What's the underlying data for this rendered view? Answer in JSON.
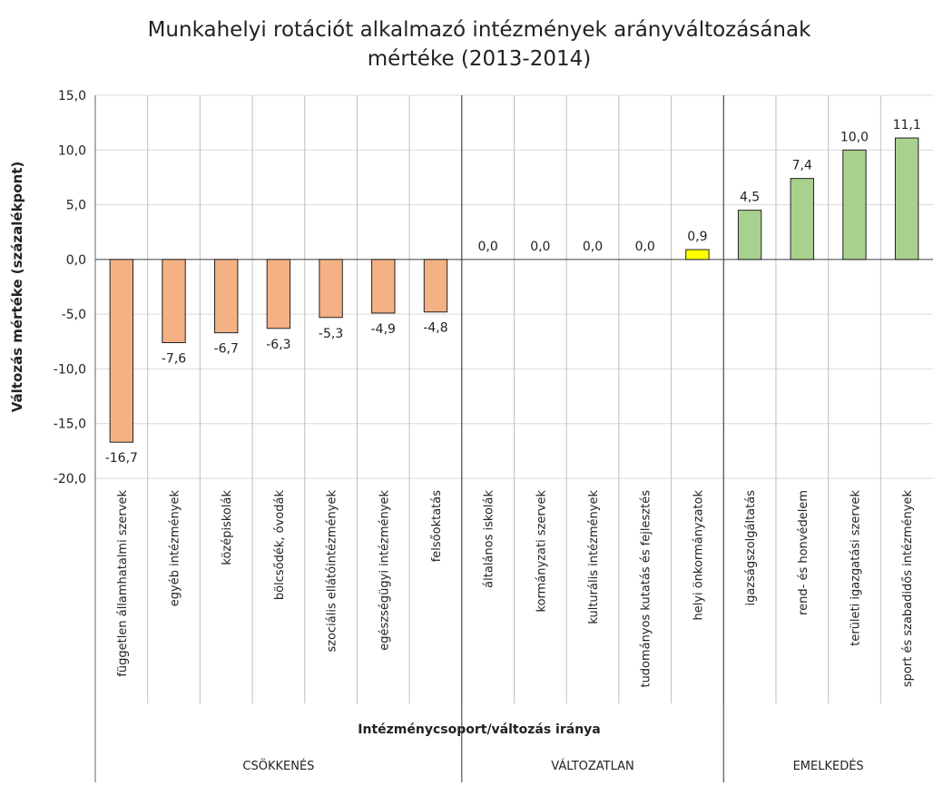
{
  "chart_data": {
    "type": "bar",
    "title": [
      "Munkahelyi rotációt alkalmazó intézmények arányváltozásának",
      "mértéke (2013-2014)"
    ],
    "y_label": "Változás mértéke (százalékpont)",
    "x_label": "Intézménycsoport/változás iránya",
    "ylim": [
      -20,
      15
    ],
    "yticks": [
      {
        "value": -20,
        "label": "-20,0"
      },
      {
        "value": -15,
        "label": "-15,0"
      },
      {
        "value": -10,
        "label": "-10,0"
      },
      {
        "value": -5,
        "label": "-5,0"
      },
      {
        "value": 0,
        "label": "0,0"
      },
      {
        "value": 5,
        "label": "5,0"
      },
      {
        "value": 10,
        "label": "10,0"
      },
      {
        "value": 15,
        "label": "15,0"
      }
    ],
    "grid": true,
    "groups": [
      {
        "name": "CSÖKKENÉS",
        "color": "#f4b183",
        "categories": [
          "független államhatalmi szervek",
          "egyéb intézmények",
          "középiskolák",
          "bölcsődék, óvodák",
          "szociális ellátóintézmények",
          "egészségügyi intézmények",
          "felsőoktatás"
        ],
        "values": [
          -16.7,
          -7.6,
          -6.7,
          -6.3,
          -5.3,
          -4.9,
          -4.8
        ],
        "value_labels": [
          "-16,7",
          "-7,6",
          "-6,7",
          "-6,3",
          "-5,3",
          "-4,9",
          "-4,8"
        ]
      },
      {
        "name": "VÁLTOZATLAN",
        "color": "#ffff00",
        "categories": [
          "általános iskolák",
          "kormányzati szervek",
          "kulturális intézmények",
          "tudományos kutatás és fejlesztés",
          "helyi önkormányzatok"
        ],
        "values": [
          0,
          0,
          0,
          0,
          0.9
        ],
        "value_labels": [
          "0,0",
          "0,0",
          "0,0",
          "0,0",
          "0,9"
        ]
      },
      {
        "name": "EMELKEDÉS",
        "color": "#a9d18e",
        "categories": [
          "igazságszolgáltatás",
          "rend- és honvédelem",
          "területi igazgatási szervek",
          "sport és szabadidős intézmények"
        ],
        "values": [
          4.5,
          7.4,
          10.0,
          11.1
        ],
        "value_labels": [
          "4,5",
          "7,4",
          "10,0",
          "11,1"
        ]
      }
    ]
  }
}
